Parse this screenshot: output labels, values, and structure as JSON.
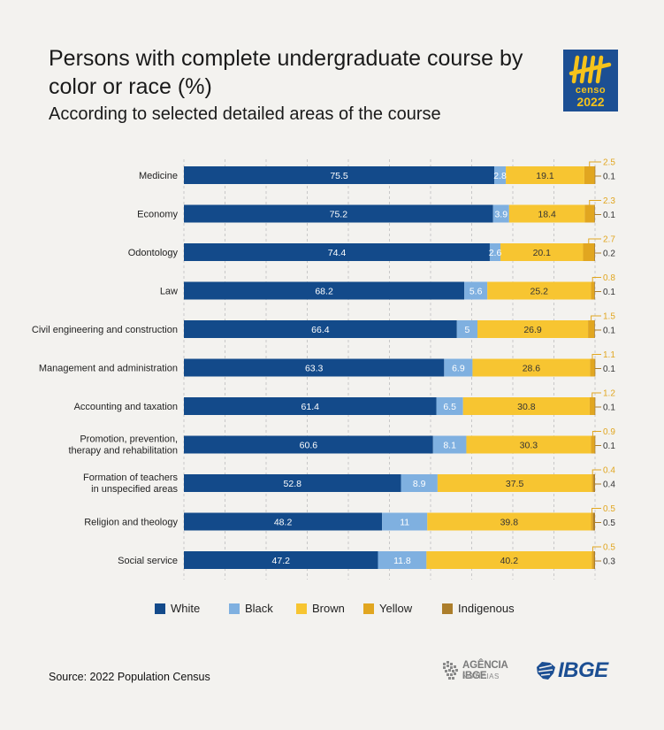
{
  "header": {
    "title": "Persons with complete undergraduate course by color or race (%)",
    "subtitle": "According to selected detailed areas of the course"
  },
  "logo": {
    "line1": "censo",
    "line2": "2022",
    "icon": "census-2022-logo"
  },
  "colors": {
    "White": "#134a8a",
    "Black": "#7fb0e0",
    "Brown": "#f7c531",
    "Yellow": "#e1a620",
    "Indigenous": "#ac7e2b"
  },
  "chart_data": {
    "type": "bar",
    "orientation": "horizontal",
    "stacked": true,
    "categories": [
      "Medicine",
      "Economy",
      "Odontology",
      "Law",
      "Civil engineering and construction",
      "Management and administration",
      "Accounting and taxation",
      "Promotion, prevention, therapy and rehabilitation",
      "Formation of teachers in unspecified areas",
      "Religion and theology",
      "Social service"
    ],
    "series": [
      {
        "name": "White",
        "values": [
          75.5,
          75.2,
          74.4,
          68.2,
          66.4,
          63.3,
          61.4,
          60.6,
          52.8,
          48.2,
          47.2
        ]
      },
      {
        "name": "Black",
        "values": [
          2.8,
          3.9,
          2.6,
          5.6,
          5,
          6.9,
          6.5,
          8.1,
          8.9,
          11,
          11.8
        ]
      },
      {
        "name": "Brown",
        "values": [
          19.1,
          18.4,
          20.1,
          25.2,
          26.9,
          28.6,
          30.8,
          30.3,
          37.5,
          39.8,
          40.2
        ]
      },
      {
        "name": "Yellow",
        "values": [
          2.5,
          2.3,
          2.7,
          0.8,
          1.5,
          1.1,
          1.2,
          0.9,
          0.4,
          0.5,
          0.5
        ]
      },
      {
        "name": "Indigenous",
        "values": [
          0.1,
          0.1,
          0.2,
          0.1,
          0.1,
          0.1,
          0.1,
          0.1,
          0.4,
          0.5,
          0.3
        ]
      }
    ],
    "xlim": [
      0,
      100
    ],
    "grid": true,
    "legend_position": "bottom"
  },
  "legend": {
    "items": [
      {
        "label": "White",
        "color": "#134a8a"
      },
      {
        "label": "Black",
        "color": "#7fb0e0"
      },
      {
        "label": "Brown",
        "color": "#f7c531"
      },
      {
        "label": "Yellow",
        "color": "#e1a620"
      },
      {
        "label": "Indigenous",
        "color": "#ac7e2b"
      }
    ]
  },
  "footer": {
    "source": "Source: 2022 Population Census",
    "agencia_line1": "AGÊNCIA IBGE",
    "agencia_line2": "NOTÍCIAS",
    "ibge_logo": "IBGE"
  }
}
